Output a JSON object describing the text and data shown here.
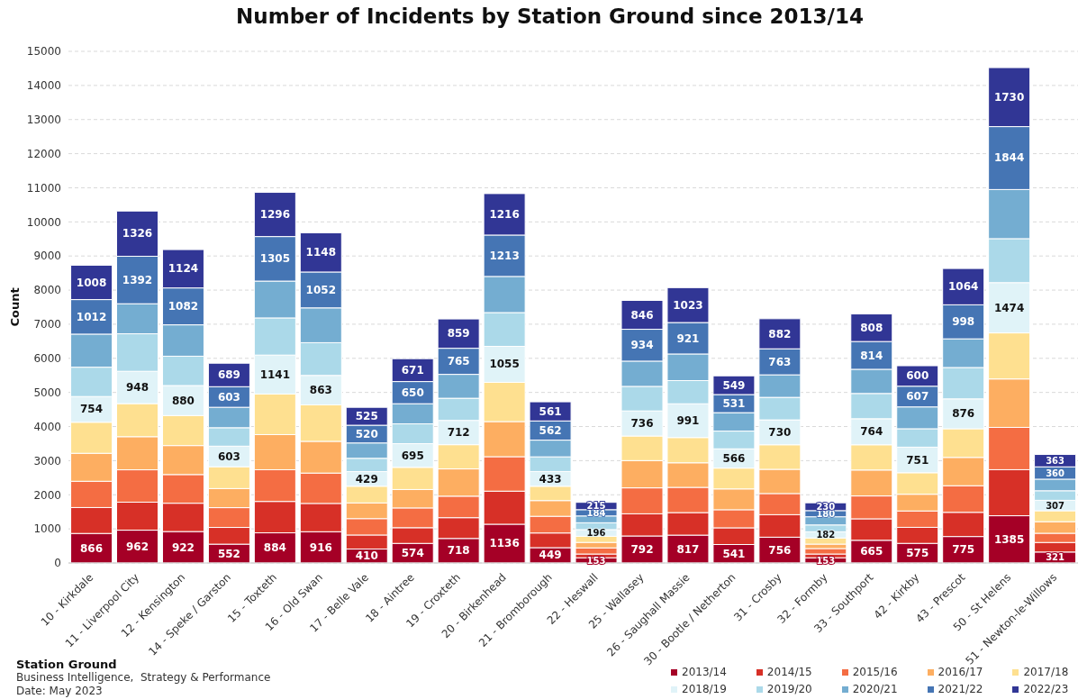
{
  "chart_data": {
    "type": "bar",
    "title": "Number of Incidents by Station Ground since 2013/14",
    "ylabel": "Count",
    "categories": [
      "10 - Kirkdale",
      "11 - Liverpool City",
      "12 - Kensington",
      "14 - Speke / Garston",
      "15 - Toxteth",
      "16 - Old Swan",
      "17 - Belle Vale",
      "18 - Aintree",
      "19 - Croxteth",
      "20 - Birkenhead",
      "21 - Bromborough",
      "22 - Heswall",
      "25 - Wallasey",
      "26 - Saughall Massie",
      "30 - Bootle / Netherton",
      "31 - Crosby",
      "32 - Formby",
      "33 - Southport",
      "42 - Kirkby",
      "43 - Prescot",
      "50 - St Helens",
      "51 - Newton-le-Willows"
    ],
    "series": [
      {
        "name": "2013/14",
        "color": "#a50026",
        "values": [
          866,
          962,
          922,
          552,
          884,
          916,
          410,
          574,
          718,
          1136,
          449,
          153,
          792,
          817,
          541,
          756,
          153,
          665,
          575,
          775,
          1385,
          321
        ],
        "value_labels": [
          "866",
          "962",
          "922",
          "552",
          "884",
          "916",
          "410",
          "574",
          "718",
          "1136",
          "449",
          "153",
          "792",
          "817",
          "541",
          "756",
          "153",
          "665",
          "575",
          "775",
          "1385",
          "321"
        ]
      },
      {
        "name": "2014/15",
        "color": "#d73027",
        "values": [
          760,
          820,
          830,
          490,
          920,
          830,
          410,
          460,
          610,
          970,
          430,
          110,
          650,
          660,
          490,
          660,
          110,
          630,
          470,
          710,
          1350,
          280
        ]
      },
      {
        "name": "2015/16",
        "color": "#f46d43",
        "values": [
          770,
          950,
          840,
          580,
          930,
          890,
          480,
          580,
          630,
          1010,
          490,
          180,
          760,
          740,
          530,
          620,
          160,
          670,
          480,
          780,
          1240,
          270
        ]
      },
      {
        "name": "2016/17",
        "color": "#fdae61",
        "values": [
          820,
          970,
          850,
          560,
          1030,
          930,
          460,
          540,
          800,
          1030,
          460,
          160,
          800,
          720,
          610,
          710,
          130,
          760,
          490,
          830,
          1420,
          340
        ]
      },
      {
        "name": "2017/18",
        "color": "#fee090",
        "values": [
          910,
          970,
          880,
          640,
          1190,
          1070,
          490,
          650,
          710,
          1150,
          420,
          180,
          720,
          740,
          610,
          720,
          180,
          740,
          630,
          840,
          1350,
          320
        ]
      },
      {
        "name": "2018/19",
        "color": "#e0f3f8",
        "values": [
          754,
          948,
          880,
          603,
          1141,
          863,
          429,
          695,
          712,
          1055,
          433,
          196,
          736,
          991,
          566,
          730,
          182,
          764,
          751,
          876,
          1474,
          307
        ],
        "value_labels": [
          "754",
          "948",
          "880",
          "603",
          "1141",
          "863",
          "429",
          "695",
          "712",
          "1055",
          "433",
          "196",
          "736",
          "991",
          "566",
          "730",
          "182",
          "764",
          "751",
          "876",
          "1474",
          "307"
        ]
      },
      {
        "name": "2019/20",
        "color": "#abd9e9",
        "values": [
          860,
          1100,
          860,
          540,
          1090,
          960,
          390,
          580,
          650,
          990,
          430,
          200,
          720,
          680,
          520,
          660,
          200,
          740,
          540,
          920,
          1290,
          280
        ]
      },
      {
        "name": "2020/21",
        "color": "#74add1",
        "values": [
          970,
          880,
          920,
          600,
          1080,
          1020,
          450,
          590,
          700,
          1060,
          490,
          200,
          740,
          780,
          540,
          660,
          240,
          710,
          640,
          840,
          1440,
          340
        ]
      },
      {
        "name": "2021/22",
        "color": "#4575b4",
        "values": [
          1012,
          1392,
          1082,
          603,
          1305,
          1052,
          520,
          650,
          765,
          1213,
          562,
          184,
          934,
          921,
          531,
          763,
          180,
          814,
          607,
          998,
          1844,
          360
        ],
        "value_labels": [
          "1012",
          "1392",
          "1082",
          "603",
          "1305",
          "1052",
          "520",
          "650",
          "765",
          "1213",
          "562",
          "184",
          "934",
          "921",
          "531",
          "763",
          "180",
          "814",
          "607",
          "998",
          "1844",
          "360"
        ]
      },
      {
        "name": "2022/23",
        "color": "#313695",
        "values": [
          1008,
          1326,
          1124,
          689,
          1296,
          1148,
          525,
          671,
          859,
          1216,
          561,
          215,
          846,
          1023,
          549,
          882,
          230,
          808,
          600,
          1064,
          1730,
          363
        ],
        "value_labels": [
          "1008",
          "1326",
          "1124",
          "689",
          "1296",
          "1148",
          "525",
          "671",
          "859",
          "1216",
          "561",
          "215",
          "846",
          "1023",
          "549",
          "882",
          "230",
          "808",
          "600",
          "1064",
          "1730",
          "363"
        ]
      }
    ],
    "stacked": true,
    "ylim": [
      0,
      15000
    ],
    "yticks": [
      0,
      1000,
      2000,
      3000,
      4000,
      5000,
      6000,
      7000,
      8000,
      9000,
      10000,
      11000,
      12000,
      13000,
      14000,
      15000
    ],
    "grid": "y",
    "legend": "bottom right",
    "annotations": [
      "Station Ground",
      "Business Intelligence,  Strategy & Performance",
      "Date: May 2023"
    ]
  }
}
